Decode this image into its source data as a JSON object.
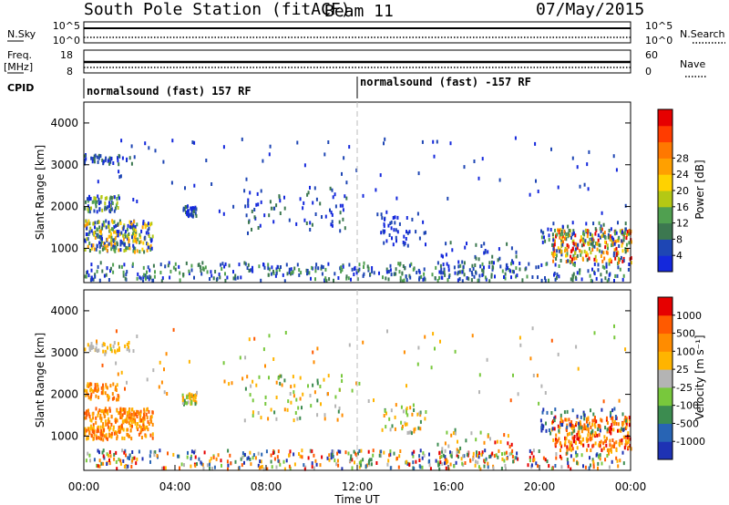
{
  "header": {
    "title": "South Pole Station (fitACF)",
    "beam": "Beam 11",
    "date": "07/May/2015"
  },
  "top_panels": {
    "nsky_label": "N.Sky",
    "nsky_ticks": [
      "10^5",
      "10^0"
    ],
    "nsearch_label": "N.Search",
    "nsearch_ticks": [
      "10^5",
      "10^0"
    ],
    "freq_label": "Freq.",
    "freq_unit": "[MHz]",
    "freq_ticks": [
      "18",
      "8"
    ],
    "nave_label": "Nave",
    "nave_ticks": [
      "60",
      "0"
    ],
    "cpid_label": "CPID",
    "cpid_segments": [
      {
        "label": "normalsound (fast) 157 RF",
        "start_hour": 0
      },
      {
        "label": "normalsound (fast) -157 RF",
        "start_hour": 12
      }
    ]
  },
  "chart_data": [
    {
      "type": "heatmap",
      "name": "power",
      "ylabel": "Slant Range [km]",
      "yticks": [
        1000,
        2000,
        3000,
        4000
      ],
      "ylim": [
        180,
        4500
      ],
      "xlim_hours": [
        0,
        24
      ],
      "colorbar": {
        "label": "Power [dB]",
        "ticks": [
          "4",
          "8",
          "12",
          "16",
          "20",
          "24",
          "28"
        ],
        "colors": [
          "#1428dc",
          "#1e46b4",
          "#3c7850",
          "#50a050",
          "#b4c814",
          "#ffd200",
          "#ffa000",
          "#ff7800",
          "#ff3c00",
          "#e60000"
        ]
      }
    },
    {
      "type": "heatmap",
      "name": "velocity",
      "ylabel": "Slant Range [km]",
      "yticks": [
        1000,
        2000,
        3000,
        4000
      ],
      "ylim": [
        180,
        4500
      ],
      "xlim_hours": [
        0,
        24
      ],
      "xticks": [
        "00:00",
        "04:00",
        "08:00",
        "12:00",
        "16:00",
        "20:00",
        "00:00"
      ],
      "xlabel": "Time UT",
      "colorbar": {
        "label": "Velocity [m s⁻¹]",
        "ticks": [
          "1000",
          "500",
          "100",
          "25",
          "-25",
          "-100",
          "-500",
          "-1000"
        ],
        "colors": [
          "#1e32b4",
          "#2864b4",
          "#3c8c50",
          "#78c83c",
          "#b4b4b4",
          "#ffb400",
          "#ff8c00",
          "#ff5a00",
          "#e60000"
        ]
      }
    }
  ]
}
